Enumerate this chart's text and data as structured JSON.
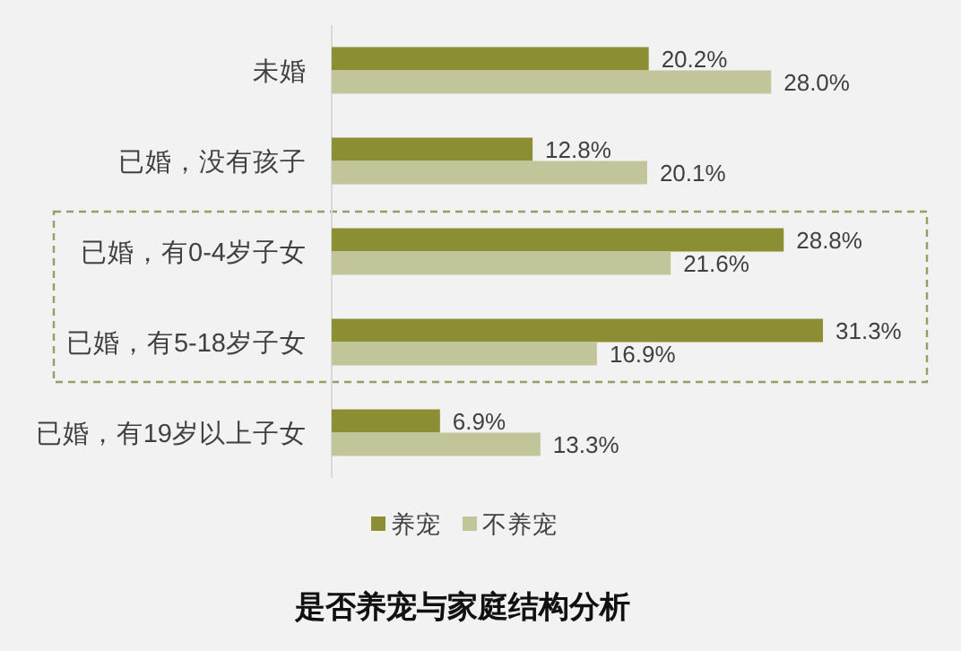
{
  "chart_data": {
    "type": "bar",
    "orientation": "horizontal",
    "title": "是否养宠与家庭结构分析",
    "categories": [
      "未婚",
      "已婚，没有孩子",
      "已婚，有0-4岁子女",
      "已婚，有5-18岁子女",
      "已婚，有19岁以上子女"
    ],
    "series": [
      {
        "name": "养宠",
        "color": "#8b8e32",
        "values": [
          20.2,
          12.8,
          28.8,
          31.3,
          6.9
        ],
        "value_labels": [
          "20.2%",
          "12.8%",
          "28.8%",
          "31.3%",
          "6.9%"
        ]
      },
      {
        "name": "不养宠",
        "color": "#c2c59a",
        "values": [
          28.0,
          20.1,
          21.6,
          16.9,
          13.3
        ],
        "value_labels": [
          "28.0%",
          "20.1%",
          "21.6%",
          "16.9%",
          "13.3%"
        ]
      }
    ],
    "legend": "bottom"
  }
}
